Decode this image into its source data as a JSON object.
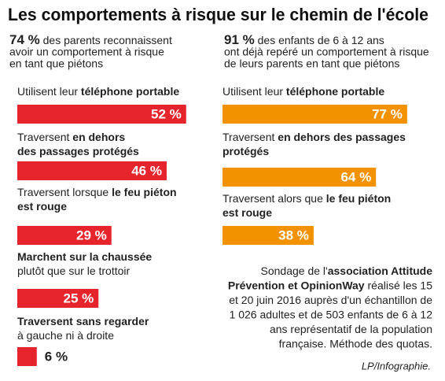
{
  "title": "Les comportements à risque sur le chemin de l'école",
  "chart_data": [
    {
      "type": "bar",
      "orientation": "horizontal",
      "subtitle_lead": "74 %",
      "subtitle": [
        "des parents reconnaissent",
        "avoir un comportement à risque",
        "en tant que piétons"
      ],
      "categories": [
        [
          [
            {
              "text": "Utilisent leur ",
              "bold": false
            },
            {
              "text": "téléphone portable",
              "bold": true
            }
          ]
        ],
        [
          [
            {
              "text": "Traversent ",
              "bold": false
            },
            {
              "text": "en dehors",
              "bold": true
            }
          ],
          [
            {
              "text": "des passages protégés",
              "bold": true
            }
          ]
        ],
        [
          [
            {
              "text": "Traversent lorsque ",
              "bold": false
            },
            {
              "text": "le feu piéton",
              "bold": true
            }
          ],
          [
            {
              "text": "est rouge",
              "bold": true
            }
          ]
        ],
        [
          [
            {
              "text": "Marchent sur la chaussée",
              "bold": true
            }
          ],
          [
            {
              "text": "plutôt que sur le trottoir",
              "bold": false
            }
          ]
        ],
        [
          [
            {
              "text": "Traversent sans regarder",
              "bold": true
            }
          ],
          [
            {
              "text": "à gauche ni à droite",
              "bold": false
            }
          ]
        ]
      ],
      "values": [
        52,
        46,
        29,
        25,
        6
      ],
      "value_labels": [
        "52 %",
        "46 %",
        "29 %",
        "25 %",
        "6 %"
      ],
      "color": "#e5242b",
      "xlim": [
        0,
        100
      ]
    },
    {
      "type": "bar",
      "orientation": "horizontal",
      "subtitle_lead": "91 %",
      "subtitle": [
        "des enfants de 6 à 12 ans",
        "ont déjà repéré un comportement à risque",
        "de leurs parents en tant que piétons"
      ],
      "categories": [
        [
          [
            {
              "text": "Utilisent leur ",
              "bold": false
            },
            {
              "text": "téléphone portable",
              "bold": true
            }
          ]
        ],
        [
          [
            {
              "text": "Traversent ",
              "bold": false
            },
            {
              "text": "en dehors des passages",
              "bold": true
            }
          ],
          [
            {
              "text": "protégés",
              "bold": true
            }
          ]
        ],
        [
          [
            {
              "text": "Traversent alors que ",
              "bold": false
            },
            {
              "text": "le feu piéton",
              "bold": true
            }
          ],
          [
            {
              "text": "est rouge",
              "bold": true
            }
          ]
        ]
      ],
      "values": [
        77,
        64,
        38
      ],
      "value_labels": [
        "77 %",
        "64 %",
        "38 %"
      ],
      "color": "#f39200",
      "xlim": [
        0,
        100
      ]
    }
  ],
  "note": [
    [
      {
        "text": "Sondage de l'",
        "bold": false
      },
      {
        "text": "association Attitude",
        "bold": true
      }
    ],
    [
      {
        "text": "Prévention et OpinionWay",
        "bold": true
      },
      {
        "text": " réalisé les 15",
        "bold": false
      }
    ],
    [
      {
        "text": "et 20 juin 2016 auprès d'un échantillon de",
        "bold": false
      }
    ],
    [
      {
        "text": "1 026 adultes et de 503 enfants de 6 à 12",
        "bold": false
      }
    ],
    [
      {
        "text": "ans représentatif de la population",
        "bold": false
      }
    ],
    [
      {
        "text": "française. Méthode des quotas.",
        "bold": false
      }
    ]
  ],
  "credit": "LP/Infographie."
}
